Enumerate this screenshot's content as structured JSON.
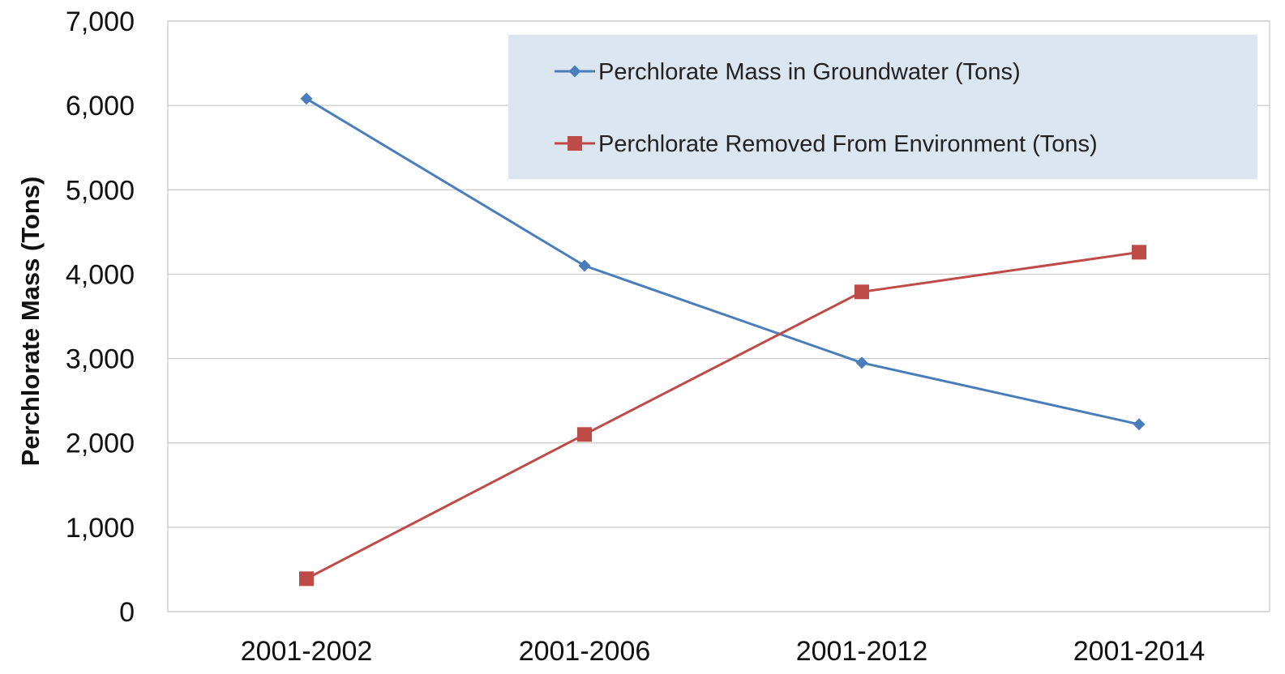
{
  "chart_data": {
    "type": "line",
    "title": "",
    "xlabel": "",
    "ylabel": "Perchlorate Mass (Tons)",
    "categories": [
      "2001-2002",
      "2001-2006",
      "2001-2012",
      "2001-2014"
    ],
    "ylim": [
      0,
      7000
    ],
    "yticks": [
      0,
      1000,
      2000,
      3000,
      4000,
      5000,
      6000,
      7000
    ],
    "ytick_labels": [
      "0",
      "1,000",
      "2,000",
      "3,000",
      "4,000",
      "5,000",
      "6,000",
      "7,000"
    ],
    "grid": true,
    "legend_position": "top-right",
    "legend_background": "#dce6f1",
    "series": [
      {
        "name": "Perchlorate Mass in Groundwater (Tons)",
        "values": [
          6080,
          4100,
          2950,
          2220
        ],
        "color": "#4a7ebb",
        "marker": "diamond"
      },
      {
        "name": "Perchlorate Removed From Environment (Tons)",
        "values": [
          390,
          2100,
          3790,
          4260
        ],
        "color": "#be4b48",
        "marker": "square"
      }
    ]
  }
}
